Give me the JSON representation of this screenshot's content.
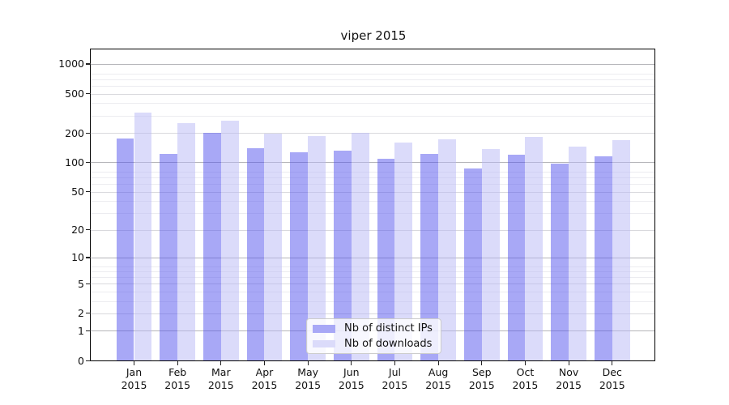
{
  "title": "viper 2015",
  "chart_data": {
    "type": "bar",
    "title": "viper 2015",
    "yscale": "log1p (symlog-like, 0 at baseline)",
    "grid": "horizontal",
    "ylim": [
      0,
      1400
    ],
    "yticks": [
      0,
      1,
      2,
      5,
      10,
      20,
      50,
      100,
      200,
      500,
      1000
    ],
    "categories": [
      "Jan",
      "Feb",
      "Mar",
      "Apr",
      "May",
      "Jun",
      "Jul",
      "Aug",
      "Sep",
      "Oct",
      "Nov",
      "Dec"
    ],
    "category_year": "2015",
    "series": [
      {
        "name": "Nb of distinct IPs",
        "color": "#a8a8f6",
        "fill": "rgba(81,81,237,0.5)",
        "values": [
          175,
          123,
          200,
          139,
          128,
          132,
          109,
          122,
          87,
          119,
          97,
          116
        ]
      },
      {
        "name": "Nb of downloads",
        "color": "#dbdbfa",
        "fill": "rgba(183,183,245,0.5)",
        "values": [
          322,
          253,
          265,
          198,
          184,
          200,
          160,
          173,
          136,
          181,
          146,
          168
        ]
      }
    ],
    "legend_position": "lower center"
  },
  "legend": {
    "items": [
      {
        "label": "Nb of distinct IPs",
        "swatch_color": "#a8a8f6"
      },
      {
        "label": "Nb of downloads",
        "swatch_color": "#dbdbfa"
      }
    ]
  },
  "grid_colors": {
    "major": "#b5b5b9",
    "labeled": "#d9d9dd",
    "minor": "#ececf0"
  }
}
